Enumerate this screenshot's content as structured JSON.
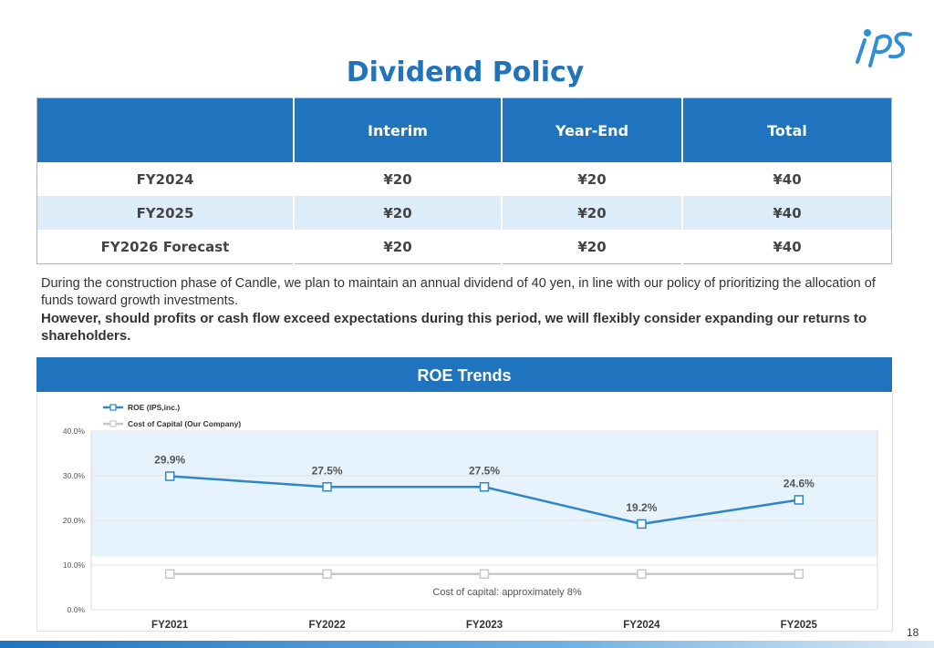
{
  "brand": {
    "logo_text": "iPS"
  },
  "page": {
    "title": "Dividend Policy",
    "number": "18"
  },
  "dividend_table": {
    "headers": [
      "",
      "Interim",
      "Year-End",
      "Total"
    ],
    "rows": [
      [
        "FY2024",
        "¥20",
        "¥20",
        "¥40"
      ],
      [
        "FY2025",
        "¥20",
        "¥20",
        "¥40"
      ],
      [
        "FY2026 Forecast",
        "¥20",
        "¥20",
        "¥40"
      ]
    ]
  },
  "description": {
    "normal": "During the construction phase of Candle, we plan to maintain an annual dividend of 40 yen, in line with our policy of prioritizing the allocation of funds toward growth investments.",
    "bold": "However, should profits or cash flow exceed expectations during this period, we will flexibly consider expanding our returns to shareholders."
  },
  "colors": {
    "brand": "#1f74bd",
    "roe_line": "#2e86c8",
    "cost_line": "#c8c8c8",
    "band": "#e6f3fc"
  },
  "chart_data": {
    "type": "line",
    "title": "ROE Trends",
    "categories": [
      "FY2021",
      "FY2022",
      "FY2023",
      "FY2024",
      "FY2025"
    ],
    "series": [
      {
        "name": "ROE (IPS,inc.)",
        "values": [
          29.9,
          27.5,
          27.5,
          19.2,
          24.6
        ],
        "labels": [
          "29.9%",
          "27.5%",
          "27.5%",
          "19.2%",
          "24.6%"
        ]
      },
      {
        "name": "Cost of Capital (Our Company)",
        "values": [
          8,
          8,
          8,
          8,
          8
        ]
      }
    ],
    "ylim": [
      0,
      40
    ],
    "yticks": [
      "0.0%",
      "10.0%",
      "20.0%",
      "30.0%",
      "40.0%"
    ],
    "ytick_values": [
      0,
      10,
      20,
      30,
      40
    ],
    "annotation": "Cost of capital: approximately 8%",
    "legend_position": "top-left",
    "grid": true
  }
}
